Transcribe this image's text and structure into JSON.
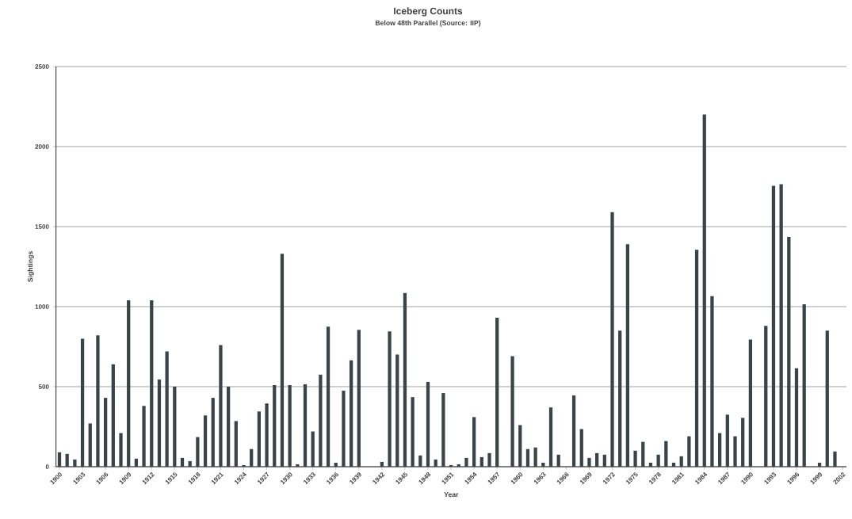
{
  "chart_data": {
    "type": "bar",
    "title": "Iceberg Counts",
    "subtitle": "Below 48th Parallel (Source: IIP)",
    "xlabel": "Year",
    "ylabel": "Sightings",
    "categories": [
      "1900",
      null,
      null,
      "1903",
      null,
      null,
      "1906",
      null,
      null,
      "1909",
      null,
      null,
      "1912",
      null,
      null,
      "1915",
      null,
      null,
      "1918",
      null,
      null,
      "1921",
      null,
      null,
      "1924",
      null,
      null,
      "1927",
      null,
      null,
      "1930",
      null,
      null,
      "1933",
      null,
      null,
      "1936",
      null,
      null,
      "1939",
      null,
      null,
      "1942",
      null,
      null,
      "1945",
      null,
      null,
      "1948",
      null,
      null,
      "1951",
      null,
      null,
      "1954",
      null,
      null,
      "1957",
      null,
      null,
      "1960",
      null,
      null,
      "1963",
      null,
      null,
      "1966",
      null,
      null,
      "1969",
      null,
      null,
      "1972",
      null,
      null,
      "1975",
      null,
      null,
      "1978",
      null,
      null,
      "1981",
      null,
      null,
      "1984",
      null,
      null,
      "1987",
      null,
      null,
      "1990",
      null,
      null,
      "1993",
      null,
      null,
      "1996",
      null,
      null,
      "1999",
      null,
      null,
      "2002"
    ],
    "values": [
      90,
      80,
      45,
      800,
      270,
      820,
      430,
      640,
      210,
      1040,
      50,
      380,
      1040,
      545,
      720,
      500,
      55,
      35,
      185,
      320,
      430,
      760,
      500,
      285,
      10,
      110,
      345,
      395,
      510,
      1330,
      510,
      15,
      515,
      220,
      575,
      875,
      25,
      475,
      665,
      855,
      0,
      0,
      30,
      845,
      700,
      1085,
      435,
      70,
      530,
      45,
      460,
      10,
      15,
      55,
      310,
      60,
      85,
      930,
      0,
      690,
      260,
      110,
      120,
      25,
      370,
      75,
      0,
      445,
      235,
      55,
      85,
      75,
      1590,
      850,
      1390,
      100,
      155,
      25,
      75,
      160,
      25,
      65,
      190,
      1355,
      2200,
      1065,
      210,
      325,
      190,
      305,
      795,
      0,
      880,
      1755,
      1765,
      1435,
      615,
      1015,
      0,
      25,
      850,
      95,
      null
    ],
    "color": "#3a4448",
    "ylim": [
      0,
      2500
    ],
    "yticks": [
      0,
      500,
      1000,
      1500,
      2000,
      2500
    ],
    "grid": "y"
  }
}
